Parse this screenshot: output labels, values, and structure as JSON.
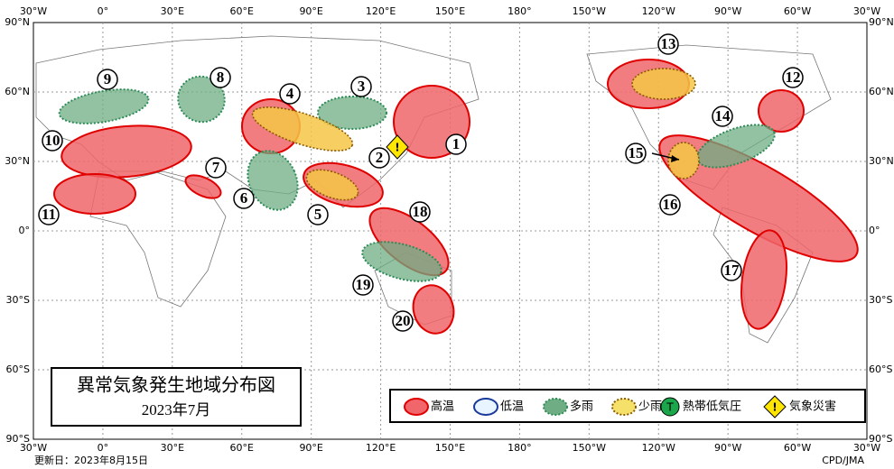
{
  "map": {
    "title": "異常気象発生地域分布図",
    "subtitle": "2023年7月",
    "lon_labels": [
      "30°W",
      "0°",
      "30°E",
      "60°E",
      "90°E",
      "120°E",
      "150°E",
      "180°",
      "150°W",
      "120°W",
      "90°W",
      "60°W",
      "30°W"
    ],
    "lat_labels": [
      "90°N",
      "60°N",
      "30°N",
      "0°",
      "30°S",
      "60°S",
      "90°S"
    ],
    "regions": [
      "1",
      "2",
      "3",
      "4",
      "5",
      "6",
      "7",
      "8",
      "9",
      "10",
      "11",
      "12",
      "13",
      "14",
      "15",
      "16",
      "17",
      "18",
      "19",
      "20"
    ],
    "disaster_icon": "!",
    "legend": [
      {
        "label": "高温"
      },
      {
        "label": "低温"
      },
      {
        "label": "多雨"
      },
      {
        "label": "少雨"
      },
      {
        "label": "熱帯低気圧",
        "icon": "T"
      },
      {
        "label": "気象災害",
        "icon": "!"
      }
    ],
    "updated": "更新日：2023年8月15日",
    "credit": "CPD/JMA"
  }
}
